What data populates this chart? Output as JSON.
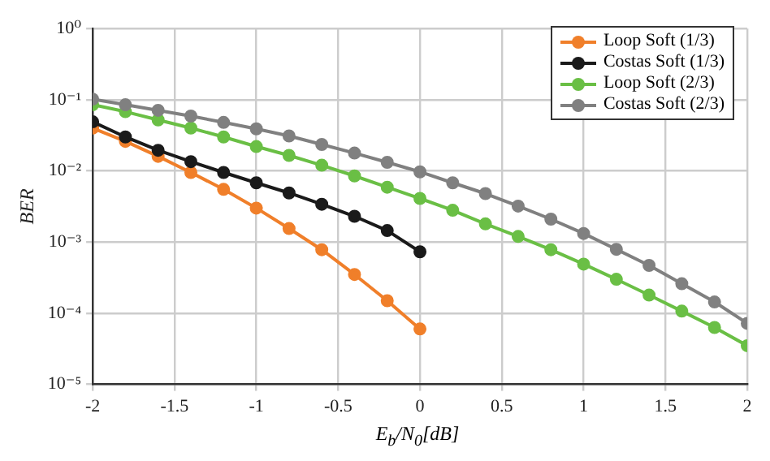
{
  "chart_data": {
    "type": "line",
    "xlabel": "E$_{b}$/N$_{0}$[dB]",
    "ylabel": "BER",
    "x": [
      -2,
      -1.8,
      -1.6,
      -1.4,
      -1.2,
      -1,
      -0.8,
      -0.6,
      -0.4,
      -0.2,
      0,
      0.2,
      0.4,
      0.6,
      0.8,
      1,
      1.2,
      1.4,
      1.6,
      1.8,
      2
    ],
    "series": [
      {
        "name": "Loop Soft (1/3)",
        "color": "#f07f2a",
        "values": [
          0.04,
          0.026,
          0.016,
          0.0095,
          0.0055,
          0.003,
          0.00155,
          0.00078,
          0.00035,
          0.00015,
          6e-05,
          null,
          null,
          null,
          null,
          null,
          null,
          null,
          null,
          null,
          null
        ]
      },
      {
        "name": "Costas Soft (1/3)",
        "color": "#1a1a1a",
        "values": [
          0.049,
          0.03,
          0.0195,
          0.0135,
          0.0095,
          0.0068,
          0.0049,
          0.0034,
          0.0023,
          0.00145,
          0.00073,
          null,
          null,
          null,
          null,
          null,
          null,
          null,
          null,
          null,
          null
        ]
      },
      {
        "name": "Loop Soft (2/3)",
        "color": "#6abf45",
        "values": [
          0.085,
          0.068,
          0.052,
          0.04,
          0.03,
          0.022,
          0.0165,
          0.012,
          0.0085,
          0.0059,
          0.0041,
          0.0028,
          0.0018,
          0.0012,
          0.00078,
          0.00049,
          0.0003,
          0.00018,
          0.000107,
          6.3e-05,
          3.5e-05
        ]
      },
      {
        "name": "Costas Soft (2/3)",
        "color": "#808080",
        "values": [
          0.102,
          0.085,
          0.071,
          0.059,
          0.048,
          0.039,
          0.031,
          0.0235,
          0.0178,
          0.0132,
          0.0097,
          0.0068,
          0.0048,
          0.0032,
          0.0021,
          0.00132,
          0.00079,
          0.00047,
          0.00026,
          0.000144,
          7.2e-05
        ]
      }
    ],
    "xlim": [
      -2,
      2
    ],
    "xticks": [
      -2,
      -1.5,
      -1,
      -0.5,
      0,
      0.5,
      1,
      1.5,
      2
    ],
    "ylim": [
      1e-05,
      1
    ],
    "log": "y",
    "yticks": [
      {
        "value": 1e-05,
        "label": "10⁻⁵"
      },
      {
        "value": 0.0001,
        "label": "10⁻⁴"
      },
      {
        "value": 0.001,
        "label": "10⁻³"
      },
      {
        "value": 0.01,
        "label": "10⁻²"
      },
      {
        "value": 0.1,
        "label": "10⁻¹"
      },
      {
        "value": 1,
        "label": "10⁰"
      }
    ],
    "grid": true,
    "legend": "top right",
    "marker": "circle",
    "line_style": "solid"
  }
}
